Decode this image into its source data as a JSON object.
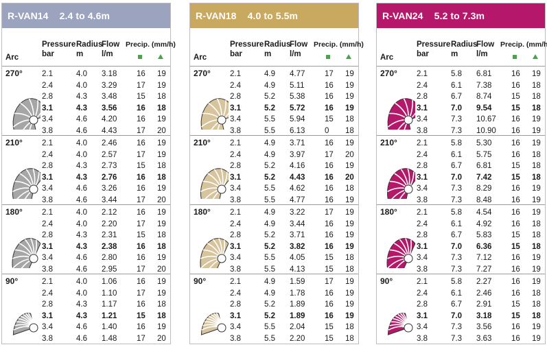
{
  "columns": {
    "arc": "Arc",
    "pressure": [
      "Pressure",
      "bar"
    ],
    "radius": [
      "Radius",
      "m"
    ],
    "flow": [
      "Flow",
      "l/m"
    ],
    "precip": "Precip. (mm/h)"
  },
  "panels": [
    {
      "model": "R-VAN14",
      "range": "2.4 to 4.6m",
      "header_color": "#9ba3bf",
      "nozzle_color": "#a6a6a6",
      "groups": [
        {
          "arc": "270°",
          "angle": 270,
          "rows": [
            [
              "2.1",
              "4.0",
              "3.18",
              "16",
              "19"
            ],
            [
              "2.4",
              "4.0",
              "3.29",
              "17",
              "19"
            ],
            [
              "2.8",
              "4.3",
              "3.48",
              "15",
              "18"
            ],
            [
              "3.1",
              "4.3",
              "3.56",
              "16",
              "18"
            ],
            [
              "3.4",
              "4.6",
              "4.20",
              "16",
              "19"
            ],
            [
              "3.8",
              "4.6",
              "4.43",
              "17",
              "20"
            ]
          ]
        },
        {
          "arc": "210°",
          "angle": 210,
          "rows": [
            [
              "2.1",
              "4.0",
              "2.46",
              "16",
              "19"
            ],
            [
              "2.4",
              "4.0",
              "2.57",
              "17",
              "19"
            ],
            [
              "2.8",
              "4.3",
              "2.73",
              "15",
              "18"
            ],
            [
              "3.1",
              "4.3",
              "2.76",
              "16",
              "18"
            ],
            [
              "3.4",
              "4.6",
              "3.26",
              "16",
              "19"
            ],
            [
              "3.8",
              "4.6",
              "3.44",
              "17",
              "20"
            ]
          ]
        },
        {
          "arc": "180°",
          "angle": 180,
          "rows": [
            [
              "2.1",
              "4.0",
              "2.12",
              "16",
              "19"
            ],
            [
              "2.4",
              "4.0",
              "2.20",
              "17",
              "19"
            ],
            [
              "2.8",
              "4.3",
              "2.31",
              "15",
              "18"
            ],
            [
              "3.1",
              "4.3",
              "2.38",
              "16",
              "18"
            ],
            [
              "3.4",
              "4.6",
              "2.80",
              "16",
              "19"
            ],
            [
              "3.8",
              "4.6",
              "2.95",
              "17",
              "20"
            ]
          ]
        },
        {
          "arc": "90°",
          "angle": 90,
          "rows": [
            [
              "2.1",
              "4.0",
              "1.06",
              "16",
              "19"
            ],
            [
              "2.4",
              "4.0",
              "1.10",
              "17",
              "19"
            ],
            [
              "2.8",
              "4.3",
              "1.17",
              "16",
              "18"
            ],
            [
              "3.1",
              "4.3",
              "1.21",
              "15",
              "18"
            ],
            [
              "3.4",
              "4.6",
              "1.40",
              "16",
              "19"
            ],
            [
              "3.8",
              "4.6",
              "1.48",
              "17",
              "20"
            ]
          ]
        }
      ]
    },
    {
      "model": "R-VAN18",
      "range": "4.0 to 5.5m",
      "header_color": "#c9a95f",
      "nozzle_color": "#d7c49c",
      "groups": [
        {
          "arc": "270°",
          "angle": 270,
          "rows": [
            [
              "2.1",
              "4.9",
              "4.77",
              "17",
              "19"
            ],
            [
              "2.4",
              "4.9",
              "5.11",
              "16",
              "19"
            ],
            [
              "2.8",
              "5.2",
              "5.38",
              "16",
              "19"
            ],
            [
              "3.1",
              "5.2",
              "5.72",
              "16",
              "19"
            ],
            [
              "3.4",
              "5.5",
              "5.94",
              "15",
              "18"
            ],
            [
              "3.8",
              "5.5",
              "6.13",
              "0",
              "18"
            ]
          ]
        },
        {
          "arc": "210°",
          "angle": 210,
          "rows": [
            [
              "2.1",
              "4.9",
              "3.71",
              "16",
              "19"
            ],
            [
              "2.4",
              "4.9",
              "3.97",
              "17",
              "20"
            ],
            [
              "2.8",
              "5.2",
              "4.16",
              "16",
              "19"
            ],
            [
              "3.1",
              "5.2",
              "4.43",
              "16",
              "20"
            ],
            [
              "3.4",
              "5.5",
              "4.62",
              "16",
              "18"
            ],
            [
              "3.8",
              "5.5",
              "4.77",
              "16",
              "19"
            ]
          ]
        },
        {
          "arc": "180°",
          "angle": 180,
          "rows": [
            [
              "2.1",
              "4.9",
              "3.22",
              "17",
              "19"
            ],
            [
              "2.4",
              "4.9",
              "3.44",
              "16",
              "19"
            ],
            [
              "2.8",
              "5.2",
              "3.71",
              "16",
              "19"
            ],
            [
              "3.1",
              "5.2",
              "3.82",
              "16",
              "19"
            ],
            [
              "3.4",
              "5.5",
              "4.05",
              "15",
              "18"
            ],
            [
              "3.8",
              "5.5",
              "4.13",
              "15",
              "18"
            ]
          ]
        },
        {
          "arc": "90°",
          "angle": 90,
          "rows": [
            [
              "2.1",
              "4.9",
              "1.59",
              "17",
              "19"
            ],
            [
              "2.4",
              "4.9",
              "1.78",
              "16",
              "19"
            ],
            [
              "2.8",
              "5.2",
              "1.89",
              "16",
              "19"
            ],
            [
              "3.1",
              "5.2",
              "1.89",
              "16",
              "19"
            ],
            [
              "3.4",
              "5.5",
              "2.04",
              "15",
              "18"
            ],
            [
              "3.8",
              "5.5",
              "2.20",
              "15",
              "18"
            ]
          ]
        }
      ]
    },
    {
      "model": "R-VAN24",
      "range": "5.2 to 7.3m",
      "header_color": "#b5176a",
      "nozzle_color": "#b5176a",
      "groups": [
        {
          "arc": "270°",
          "angle": 270,
          "rows": [
            [
              "2.1",
              "5.8",
              "6.81",
              "16",
              "19"
            ],
            [
              "2.4",
              "6.1",
              "7.38",
              "16",
              "18"
            ],
            [
              "2.8",
              "6.7",
              "8.74",
              "15",
              "18"
            ],
            [
              "3.1",
              "7.0",
              "9.54",
              "15",
              "18"
            ],
            [
              "3.4",
              "7.3",
              "10.67",
              "16",
              "19"
            ],
            [
              "3.8",
              "7.3",
              "10.90",
              "16",
              "19"
            ]
          ]
        },
        {
          "arc": "210°",
          "angle": 210,
          "rows": [
            [
              "2.1",
              "5.8",
              "5.30",
              "16",
              "19"
            ],
            [
              "2.4",
              "6.1",
              "5.75",
              "16",
              "18"
            ],
            [
              "2.8",
              "6.7",
              "6.81",
              "15",
              "18"
            ],
            [
              "3.1",
              "7.0",
              "7.42",
              "15",
              "18"
            ],
            [
              "3.4",
              "7.3",
              "8.29",
              "16",
              "19"
            ],
            [
              "3.8",
              "7.3",
              "8.48",
              "16",
              "19"
            ]
          ]
        },
        {
          "arc": "180°",
          "angle": 180,
          "rows": [
            [
              "2.1",
              "5.8",
              "4.54",
              "16",
              "19"
            ],
            [
              "2.4",
              "6.1",
              "4.92",
              "16",
              "18"
            ],
            [
              "2.8",
              "6.7",
              "5.83",
              "15",
              "18"
            ],
            [
              "3.1",
              "7.0",
              "6.36",
              "15",
              "18"
            ],
            [
              "3.4",
              "7.3",
              "7.12",
              "16",
              "19"
            ],
            [
              "3.8",
              "7.3",
              "7.27",
              "16",
              "19"
            ]
          ]
        },
        {
          "arc": "90°",
          "angle": 90,
          "rows": [
            [
              "2.1",
              "5.8",
              "2.27",
              "16",
              "19"
            ],
            [
              "2.4",
              "6.1",
              "2.46",
              "16",
              "18"
            ],
            [
              "2.8",
              "6.7",
              "2.91",
              "15",
              "18"
            ],
            [
              "3.1",
              "7.0",
              "3.18",
              "15",
              "18"
            ],
            [
              "3.4",
              "7.3",
              "3.56",
              "16",
              "19"
            ],
            [
              "3.8",
              "7.3",
              "3.63",
              "16",
              "19"
            ]
          ]
        }
      ]
    }
  ],
  "symbols": {
    "square_color": "#4aa44a",
    "triangle_color": "#4aa44a"
  }
}
